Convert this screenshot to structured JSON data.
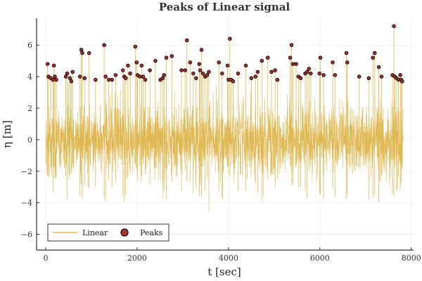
{
  "chart_data": {
    "type": "line",
    "title": "Peaks of Linear signal",
    "xlabel": "t [sec]",
    "ylabel": "η [m]",
    "xlim": [
      -200,
      8050
    ],
    "ylim": [
      -7.0,
      7.7
    ],
    "xticks": [
      0,
      2000,
      4000,
      6000,
      8000
    ],
    "yticks": [
      -6,
      -4,
      -2,
      0,
      2,
      4,
      6
    ],
    "grid": true,
    "legend_position": "bottom-left",
    "colors": {
      "linear": "#e0b852",
      "peaks_fill": "#b0302a",
      "peaks_edge": "#000000"
    },
    "series": [
      {
        "name": "Linear",
        "kind": "line",
        "x_range": [
          0,
          7820
        ],
        "y_range": [
          -6.7,
          7.2
        ]
      },
      {
        "name": "Peaks",
        "kind": "scatter",
        "points": [
          [
            40,
            4.8
          ],
          [
            60,
            4.0
          ],
          [
            110,
            3.9
          ],
          [
            160,
            3.8
          ],
          [
            180,
            4.7
          ],
          [
            200,
            4.0
          ],
          [
            230,
            3.8
          ],
          [
            440,
            4.0
          ],
          [
            470,
            4.2
          ],
          [
            530,
            3.9
          ],
          [
            560,
            3.7
          ],
          [
            590,
            4.3
          ],
          [
            750,
            4.0
          ],
          [
            780,
            5.7
          ],
          [
            800,
            5.5
          ],
          [
            850,
            3.9
          ],
          [
            950,
            5.5
          ],
          [
            1090,
            3.8
          ],
          [
            1280,
            6.0
          ],
          [
            1310,
            4.0
          ],
          [
            1380,
            3.8
          ],
          [
            1450,
            3.8
          ],
          [
            1530,
            4.1
          ],
          [
            1690,
            4.4
          ],
          [
            1720,
            4.0
          ],
          [
            1750,
            3.9
          ],
          [
            1800,
            4.7
          ],
          [
            1850,
            4.2
          ],
          [
            1960,
            5.9
          ],
          [
            1990,
            4.9
          ],
          [
            2010,
            4.1
          ],
          [
            2060,
            4.0
          ],
          [
            2100,
            4.7
          ],
          [
            2130,
            4.0
          ],
          [
            2180,
            3.8
          ],
          [
            2280,
            4.4
          ],
          [
            2400,
            5.0
          ],
          [
            2510,
            3.8
          ],
          [
            2560,
            3.9
          ],
          [
            2590,
            4.1
          ],
          [
            2640,
            5.2
          ],
          [
            2760,
            5.3
          ],
          [
            2970,
            4.4
          ],
          [
            3050,
            4.4
          ],
          [
            3090,
            6.3
          ],
          [
            3160,
            4.9
          ],
          [
            3230,
            4.2
          ],
          [
            3290,
            3.9
          ],
          [
            3360,
            4.8
          ],
          [
            3380,
            4.4
          ],
          [
            3410,
            5.7
          ],
          [
            3440,
            4.2
          ],
          [
            3490,
            4.0
          ],
          [
            3530,
            4.1
          ],
          [
            3570,
            4.3
          ],
          [
            3790,
            4.9
          ],
          [
            3860,
            4.2
          ],
          [
            3980,
            4.7
          ],
          [
            4000,
            3.8
          ],
          [
            4030,
            6.4
          ],
          [
            4060,
            3.8
          ],
          [
            4100,
            3.7
          ],
          [
            4210,
            4.2
          ],
          [
            4380,
            4.7
          ],
          [
            4500,
            3.9
          ],
          [
            4590,
            4.0
          ],
          [
            4640,
            4.3
          ],
          [
            4730,
            5.0
          ],
          [
            4860,
            5.2
          ],
          [
            4940,
            4.3
          ],
          [
            5020,
            4.4
          ],
          [
            5070,
            3.8
          ],
          [
            5350,
            5.2
          ],
          [
            5380,
            6.0
          ],
          [
            5410,
            4.8
          ],
          [
            5480,
            4.8
          ],
          [
            5530,
            4.0
          ],
          [
            5580,
            3.9
          ],
          [
            5680,
            4.2
          ],
          [
            5720,
            4.3
          ],
          [
            5760,
            4.5
          ],
          [
            5800,
            4.2
          ],
          [
            5990,
            4.2
          ],
          [
            6010,
            5.2
          ],
          [
            6080,
            4.1
          ],
          [
            6280,
            4.9
          ],
          [
            6330,
            4.1
          ],
          [
            6580,
            5.5
          ],
          [
            6600,
            4.9
          ],
          [
            6860,
            4.0
          ],
          [
            7070,
            3.9
          ],
          [
            7160,
            5.2
          ],
          [
            7200,
            5.5
          ],
          [
            7290,
            4.6
          ],
          [
            7350,
            4.0
          ],
          [
            7590,
            4.1
          ],
          [
            7620,
            7.2
          ],
          [
            7640,
            4.0
          ],
          [
            7680,
            3.9
          ],
          [
            7720,
            3.8
          ],
          [
            7760,
            4.1
          ],
          [
            7780,
            3.8
          ],
          [
            7800,
            3.7
          ]
        ]
      }
    ]
  }
}
